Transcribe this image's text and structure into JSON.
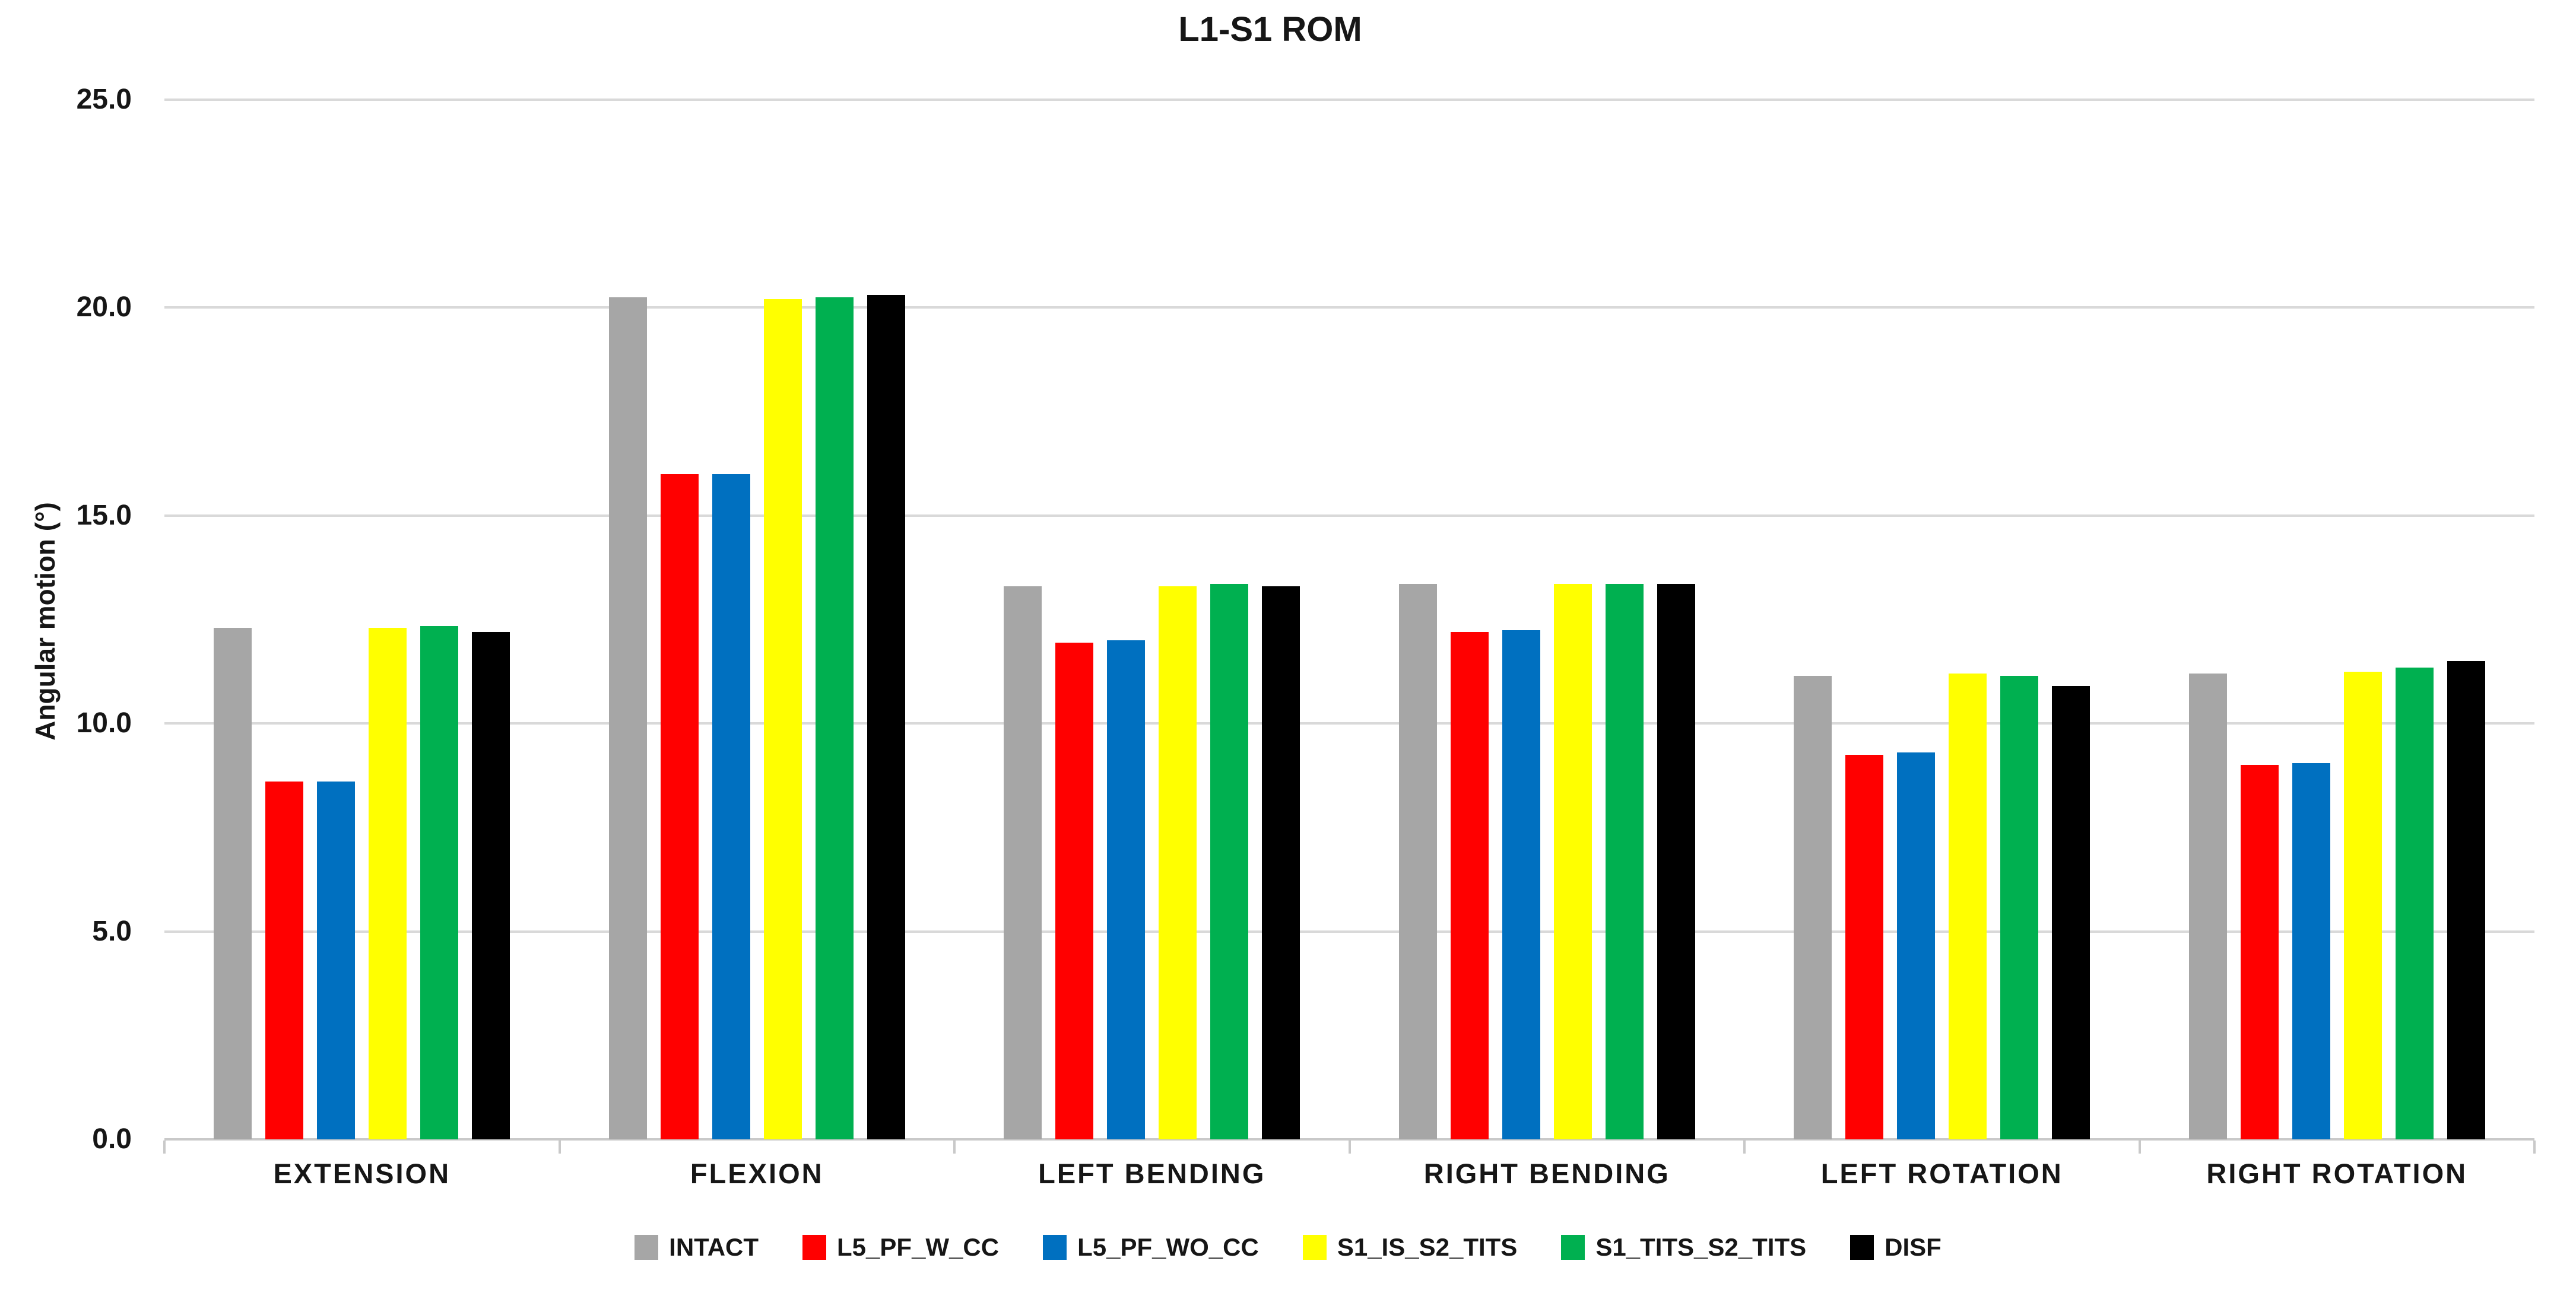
{
  "chart_data": {
    "type": "bar",
    "title": "L1-S1 ROM",
    "ylabel": "Angular motion (°)",
    "xlabel": "",
    "ylim": [
      0,
      25
    ],
    "y_tick_step": 5,
    "y_tick_labels": [
      "25.0",
      "20.0",
      "15.0",
      "10.0",
      "5.0",
      "0.0"
    ],
    "grid": "horizontal",
    "legend_position": "bottom",
    "categories": [
      "EXTENSION",
      "FLEXION",
      "LEFT BENDING",
      "RIGHT BENDING",
      "LEFT ROTATION",
      "RIGHT ROTATION"
    ],
    "series": [
      {
        "name": "INTACT",
        "color": "#A6A6A6",
        "values": [
          12.3,
          20.25,
          13.3,
          13.35,
          11.15,
          11.2
        ]
      },
      {
        "name": "L5_PF_W_CC",
        "color": "#FF0000",
        "values": [
          8.6,
          16.0,
          11.95,
          12.2,
          9.25,
          9.0
        ]
      },
      {
        "name": "L5_PF_WO_CC",
        "color": "#0070C0",
        "values": [
          8.6,
          16.0,
          12.0,
          12.25,
          9.3,
          9.05
        ]
      },
      {
        "name": "S1_IS_S2_TITS",
        "color": "#FFFF00",
        "values": [
          12.3,
          20.2,
          13.3,
          13.35,
          11.2,
          11.25
        ]
      },
      {
        "name": "S1_TITS_S2_TITS",
        "color": "#00B050",
        "values": [
          12.35,
          20.25,
          13.35,
          13.35,
          11.15,
          11.35
        ]
      },
      {
        "name": "DISF",
        "color": "#000000",
        "values": [
          12.2,
          20.3,
          13.3,
          13.35,
          10.9,
          11.5
        ]
      }
    ]
  },
  "colors": {
    "gridline": "#D9D9D9",
    "axis_line": "#C9C9C9",
    "text": "#161616",
    "background": "#FFFFFF"
  }
}
